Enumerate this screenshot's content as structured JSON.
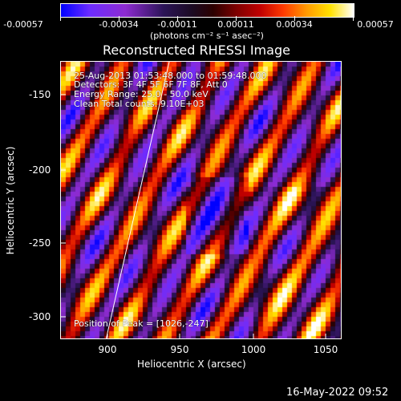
{
  "colorbar": {
    "tick_labels": [
      "-0.00057",
      "-0.00034",
      "-0.00011",
      "0.00011",
      "0.00034",
      "0.00057"
    ],
    "units": "(photons cm⁻² s⁻¹ asec⁻²)"
  },
  "plot": {
    "title": "Reconstructed RHESSI Image",
    "annotations": {
      "time_range": "25-Aug-2013 01:53:48.000 to 01:59:48.000",
      "detectors": "Detectors: 3F 4F 5F 6F 7F 8F, Att 0",
      "energy_range": "Energy Range: 25.0 - 50.0 keV",
      "clean_counts": "Clean    Total counts: 9.10E+03",
      "peak_position": "Position of Peak = [1026,-247]"
    },
    "x_axis": {
      "label": "Heliocentric X (arcsec)",
      "ticks": [
        "900",
        "950",
        "1000",
        "1050"
      ]
    },
    "y_axis": {
      "label": "Heliocentric Y (arcsec)",
      "ticks": [
        "-150",
        "-200",
        "-250",
        "-300"
      ]
    }
  },
  "footer": {
    "timestamp": "16-May-2022 09:52"
  }
}
